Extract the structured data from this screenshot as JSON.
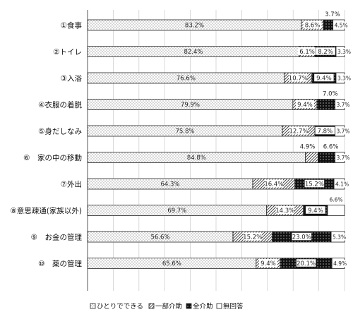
{
  "chart_data": {
    "type": "bar",
    "stacked": true,
    "orientation": "horizontal",
    "xlim": [
      0,
      100
    ],
    "grid": true,
    "legend_position": "bottom",
    "categories": [
      "①食事",
      "②トイレ",
      "③入浴",
      "④衣服の着脱",
      "⑤身だしなみ",
      "⑥　家の中の移動",
      "⑦外出",
      "⑧意思疎通(家族以外)",
      "⑨　お金の管理",
      "⑩　薬の管理"
    ],
    "series": [
      {
        "name": "ひとりでできる",
        "values": [
          83.2,
          82.4,
          76.6,
          79.9,
          75.8,
          84.8,
          64.3,
          69.7,
          56.6,
          65.6
        ],
        "labels": [
          "83.2%",
          "82.4%",
          "76.6%",
          "79.9%",
          "75.8%",
          "84.8%",
          "64.3%",
          "69.7%",
          "56.6%",
          "65.6%"
        ]
      },
      {
        "name": "一部介助",
        "values": [
          8.6,
          6.1,
          10.7,
          9.4,
          12.7,
          4.9,
          16.4,
          14.3,
          15.2,
          9.4
        ],
        "labels": [
          "8.6%",
          "6.1%",
          "10.7%",
          "9.4%",
          "12.7%",
          "4.9%",
          "16.4%",
          "14.3%",
          "15.2%",
          "9.4%"
        ]
      },
      {
        "name": "全介助",
        "values": [
          3.7,
          8.2,
          9.4,
          7.0,
          7.8,
          6.6,
          15.2,
          9.4,
          23.0,
          20.1
        ],
        "labels": [
          "3.7%",
          "8.2%",
          "9.4%",
          "7.0%",
          "7.8%",
          "6.6%",
          "15.2%",
          "9.4%",
          "23.0%",
          "20.1%"
        ]
      },
      {
        "name": "無回答",
        "values": [
          4.5,
          3.3,
          3.3,
          3.7,
          3.7,
          3.7,
          4.1,
          6.6,
          5.3,
          4.9
        ],
        "labels": [
          "4.5%",
          "3.3%",
          "3.3%",
          "3.7%",
          "3.7%",
          "3.7%",
          "4.1%",
          "6.6%",
          "5.3%",
          "4.9%"
        ]
      }
    ],
    "series_fills": [
      "dots",
      "hatch",
      "black-dots",
      "white"
    ]
  }
}
